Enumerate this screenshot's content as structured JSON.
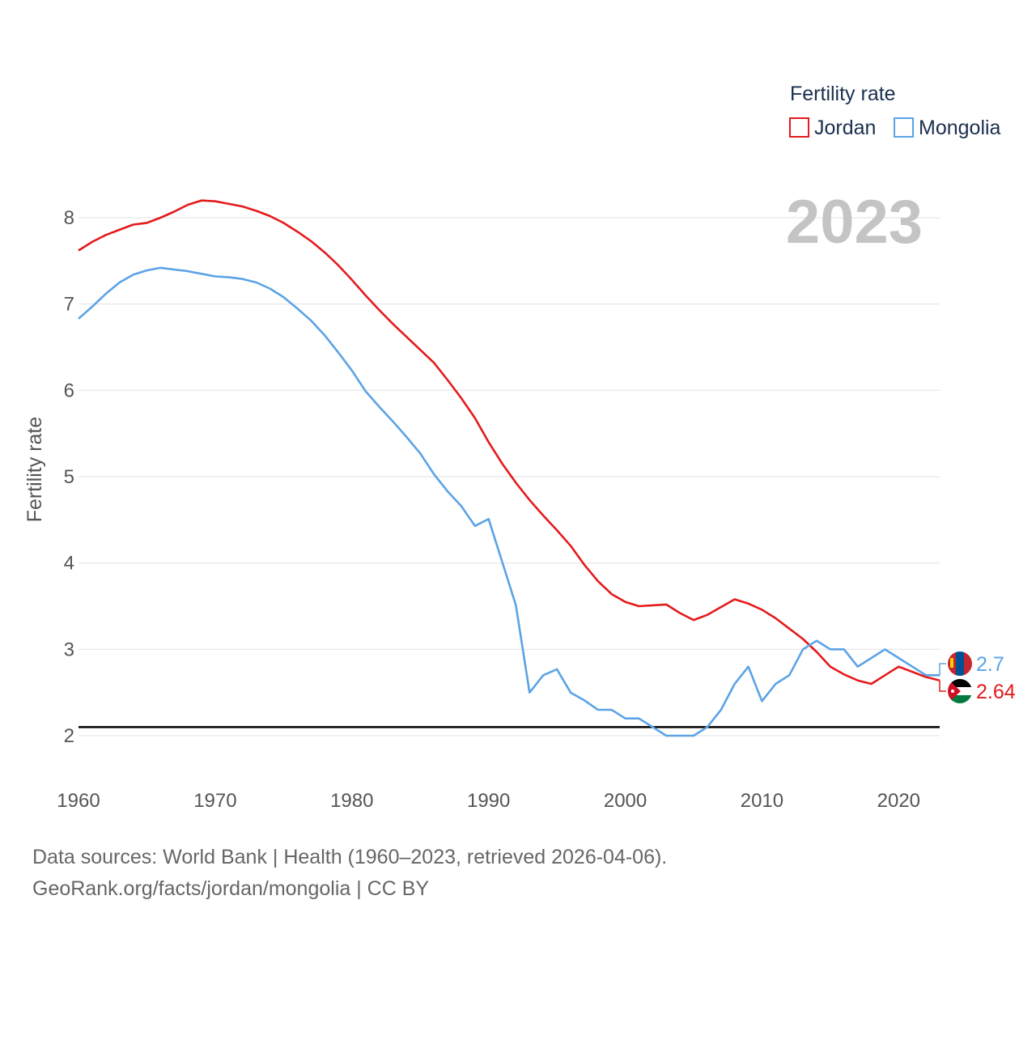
{
  "chart_data": {
    "type": "line",
    "title": "",
    "xlabel": "",
    "ylabel": "Fertility rate",
    "xlim": [
      1960,
      2023
    ],
    "ylim": [
      1.5,
      8.5
    ],
    "x_ticks": [
      1960,
      1970,
      1980,
      1990,
      2000,
      2010,
      2020
    ],
    "y_ticks": [
      2,
      3,
      4,
      5,
      6,
      7,
      8
    ],
    "grid": true,
    "year_label": "2023",
    "legend": {
      "title": "Fertility rate",
      "position": "top-right"
    },
    "reference_line": {
      "y": 2.1,
      "color": "#000000"
    },
    "x": [
      1960,
      1961,
      1962,
      1963,
      1964,
      1965,
      1966,
      1967,
      1968,
      1969,
      1970,
      1971,
      1972,
      1973,
      1974,
      1975,
      1976,
      1977,
      1978,
      1979,
      1980,
      1981,
      1982,
      1983,
      1984,
      1985,
      1986,
      1987,
      1988,
      1989,
      1990,
      1991,
      1992,
      1993,
      1994,
      1995,
      1996,
      1997,
      1998,
      1999,
      2000,
      2001,
      2002,
      2003,
      2004,
      2005,
      2006,
      2007,
      2008,
      2009,
      2010,
      2011,
      2012,
      2013,
      2014,
      2015,
      2016,
      2017,
      2018,
      2019,
      2020,
      2021,
      2022,
      2023
    ],
    "series": [
      {
        "name": "Jordan",
        "color": "#e41a1c",
        "end_label": "2.64",
        "values": [
          7.62,
          7.72,
          7.8,
          7.86,
          7.92,
          7.94,
          8.0,
          8.07,
          8.15,
          8.2,
          8.19,
          8.16,
          8.13,
          8.08,
          8.02,
          7.94,
          7.84,
          7.73,
          7.6,
          7.45,
          7.28,
          7.1,
          6.93,
          6.77,
          6.62,
          6.47,
          6.32,
          6.12,
          5.91,
          5.68,
          5.4,
          5.15,
          4.93,
          4.73,
          4.55,
          4.38,
          4.2,
          3.98,
          3.79,
          3.64,
          3.55,
          3.5,
          3.51,
          3.52,
          3.42,
          3.34,
          3.4,
          3.49,
          3.58,
          3.53,
          3.46,
          3.36,
          3.24,
          3.12,
          2.97,
          2.8,
          2.71,
          2.64,
          2.6,
          2.7,
          2.8,
          2.74,
          2.68,
          2.64
        ]
      },
      {
        "name": "Mongolia",
        "color": "#5ba3e6",
        "end_label": "2.7",
        "values": [
          6.83,
          6.97,
          7.12,
          7.25,
          7.34,
          7.39,
          7.42,
          7.4,
          7.38,
          7.35,
          7.32,
          7.31,
          7.29,
          7.25,
          7.18,
          7.08,
          6.95,
          6.81,
          6.64,
          6.44,
          6.23,
          5.99,
          5.81,
          5.64,
          5.46,
          5.27,
          5.03,
          4.83,
          4.66,
          4.43,
          4.51,
          4.01,
          3.51,
          2.5,
          2.7,
          2.77,
          2.5,
          2.41,
          2.3,
          2.3,
          2.2,
          2.2,
          2.1,
          2.0,
          2.0,
          2.0,
          2.1,
          2.3,
          2.6,
          2.8,
          2.4,
          2.6,
          2.7,
          3.0,
          3.1,
          3.0,
          3.0,
          2.8,
          2.9,
          3.0,
          2.9,
          2.8,
          2.7,
          2.7
        ]
      }
    ]
  },
  "footer": {
    "line1": "Data sources: World Bank | Health (1960–2023, retrieved 2026-04-06).",
    "line2": "GeoRank.org/facts/jordan/mongolia | CC BY"
  }
}
